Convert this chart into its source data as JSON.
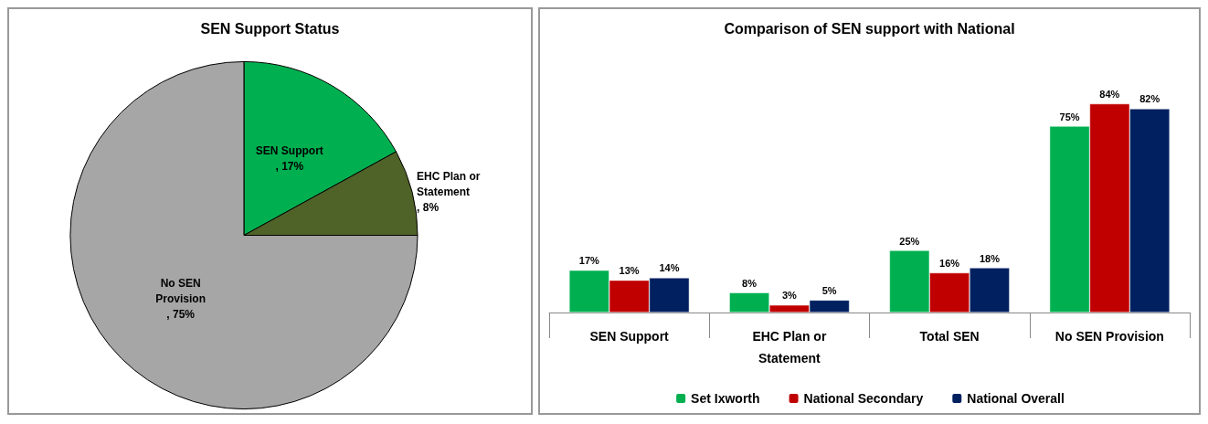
{
  "chart_data": [
    {
      "type": "pie",
      "title": "SEN Support Status",
      "categories": [
        "SEN Support",
        "EHC Plan or Statement",
        "No SEN Provision"
      ],
      "values": [
        17,
        8,
        75
      ],
      "colors": [
        "#00b050",
        "#4f6228",
        "#a6a6a6"
      ],
      "value_labels": [
        ", 17%",
        ", 8%",
        ", 75%"
      ],
      "legend": false
    },
    {
      "type": "bar",
      "title": "Comparison of SEN support with National",
      "categories": [
        "SEN Support",
        "EHC Plan or Statement",
        "Total SEN",
        "No SEN Provision"
      ],
      "series": [
        {
          "name": "Set Ixworth",
          "color": "#00b050",
          "values": [
            17,
            8,
            25,
            75
          ],
          "value_labels": [
            "17%",
            "8%",
            "25%",
            "75%"
          ]
        },
        {
          "name": "National Secondary",
          "color": "#c00000",
          "values": [
            13,
            3,
            16,
            84
          ],
          "value_labels": [
            "13%",
            "3%",
            "16%",
            "84%"
          ]
        },
        {
          "name": "National Overall",
          "color": "#002060",
          "values": [
            14,
            5,
            18,
            82
          ],
          "value_labels": [
            "14%",
            "5%",
            "18%",
            "82%"
          ]
        }
      ],
      "legend": "bottom",
      "grid": false
    }
  ]
}
